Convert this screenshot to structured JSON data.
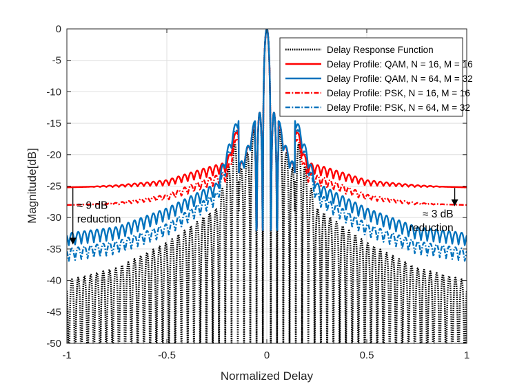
{
  "chart_data": {
    "type": "line",
    "title": "",
    "xlabel": "Normalized Delay",
    "ylabel": "Magnitude[dB]",
    "xlim": [
      -1,
      1
    ],
    "ylim": [
      -50,
      0
    ],
    "xticks": [
      -1,
      -0.5,
      0,
      0.5,
      1
    ],
    "xtick_labels": [
      "-1",
      "-0.5",
      "0",
      "0.5",
      "1"
    ],
    "yticks": [
      0,
      -5,
      -10,
      -15,
      -20,
      -25,
      -30,
      -35,
      -40,
      -45,
      -50
    ],
    "ytick_labels": [
      "0",
      "-5",
      "-10",
      "-15",
      "-20",
      "-25",
      "-30",
      "-35",
      "-40",
      "-45",
      "-50"
    ],
    "grid": true,
    "legend_position": "top-right",
    "series": [
      {
        "name": "Delay Response Function",
        "color": "#000000",
        "style": "dotted",
        "mainlobe_width": 0.02,
        "sidelobe_period": 0.0313,
        "near_sidelobe_peaks": [
          [
            0.047,
            -13.3
          ],
          [
            0.078,
            -17.9
          ],
          [
            0.109,
            -20.8
          ],
          [
            0.141,
            -22.9
          ]
        ],
        "envelope": [
          [
            0.0,
            0.0
          ],
          [
            0.25,
            -28.5
          ],
          [
            0.5,
            -34.0
          ],
          [
            0.75,
            -38.0
          ],
          [
            1.0,
            -40.0
          ]
        ],
        "trough_floor": -50
      },
      {
        "name": "Delay Profile: QAM, N = 16, M = 16",
        "color": "#ff0000",
        "style": "solid",
        "mainlobe_width": 0.02,
        "sidelobe_period": 0.0313,
        "near_sidelobe_peaks": [
          [
            0.047,
            -13.3
          ],
          [
            0.078,
            -17.9
          ],
          [
            0.109,
            -20.8
          ],
          [
            0.141,
            -22.9
          ]
        ],
        "envelope": [
          [
            0.0,
            0.0
          ],
          [
            0.2,
            -22.0
          ],
          [
            0.5,
            -24.5
          ],
          [
            0.75,
            -25.0
          ],
          [
            1.0,
            -25.2
          ]
        ],
        "ripple_db": [
          [
            0.0,
            0.8
          ],
          [
            0.3,
            0.8
          ],
          [
            0.6,
            0.3
          ],
          [
            0.9,
            0.0
          ],
          [
            1.0,
            0.0
          ]
        ]
      },
      {
        "name": "Delay Profile: QAM, N = 64, M = 32",
        "color": "#0072bd",
        "style": "solid",
        "mainlobe_width": 0.02,
        "sidelobe_period": 0.0313,
        "near_sidelobe_peaks": [
          [
            0.047,
            -13.3
          ],
          [
            0.078,
            -17.9
          ],
          [
            0.109,
            -20.8
          ],
          [
            0.141,
            -22.9
          ]
        ],
        "envelope": [
          [
            0.0,
            0.0
          ],
          [
            0.25,
            -25.5
          ],
          [
            0.5,
            -29.5
          ],
          [
            0.75,
            -32.5
          ],
          [
            1.0,
            -33.5
          ]
        ],
        "ripple_db": [
          [
            0.0,
            1.0
          ],
          [
            1.0,
            1.0
          ]
        ]
      },
      {
        "name": "Delay Profile: PSK, N = 16, M = 16",
        "color": "#ff0000",
        "style": "dashdot",
        "mainlobe_width": 0.02,
        "sidelobe_period": 0.0313,
        "near_sidelobe_peaks": [
          [
            0.047,
            -13.3
          ],
          [
            0.078,
            -17.9
          ],
          [
            0.109,
            -20.8
          ],
          [
            0.141,
            -22.9
          ]
        ],
        "envelope": [
          [
            0.0,
            0.0
          ],
          [
            0.2,
            -23.5
          ],
          [
            0.5,
            -26.8
          ],
          [
            0.75,
            -27.8
          ],
          [
            1.0,
            -28.0
          ]
        ],
        "ripple_db": [
          [
            0.0,
            0.8
          ],
          [
            0.3,
            0.8
          ],
          [
            0.6,
            0.3
          ],
          [
            0.9,
            0.0
          ],
          [
            1.0,
            0.0
          ]
        ]
      },
      {
        "name": "Delay Profile: PSK, N = 64, M = 32",
        "color": "#0072bd",
        "style": "dashdot",
        "mainlobe_width": 0.02,
        "sidelobe_period": 0.0313,
        "near_sidelobe_peaks": [
          [
            0.047,
            -13.3
          ],
          [
            0.078,
            -17.9
          ],
          [
            0.109,
            -20.8
          ],
          [
            0.141,
            -22.9
          ]
        ],
        "envelope": [
          [
            0.0,
            0.0
          ],
          [
            0.25,
            -27.0
          ],
          [
            0.5,
            -32.0
          ],
          [
            0.75,
            -34.8
          ],
          [
            1.0,
            -36.0
          ]
        ],
        "ripple_db": [
          [
            0.0,
            1.0
          ],
          [
            1.0,
            1.0
          ]
        ]
      }
    ],
    "annotations": [
      {
        "id": "left",
        "lines": [
          "≈ 9 dB",
          "reduction"
        ],
        "arrow_x": -0.97,
        "arrow_from_y": -25.3,
        "arrow_to_y": -34.3
      },
      {
        "id": "right",
        "lines": [
          "≈ 3 dB",
          "reduction"
        ],
        "arrow_x": 0.94,
        "arrow_from_y": -25.3,
        "arrow_to_y": -28.2
      }
    ]
  }
}
